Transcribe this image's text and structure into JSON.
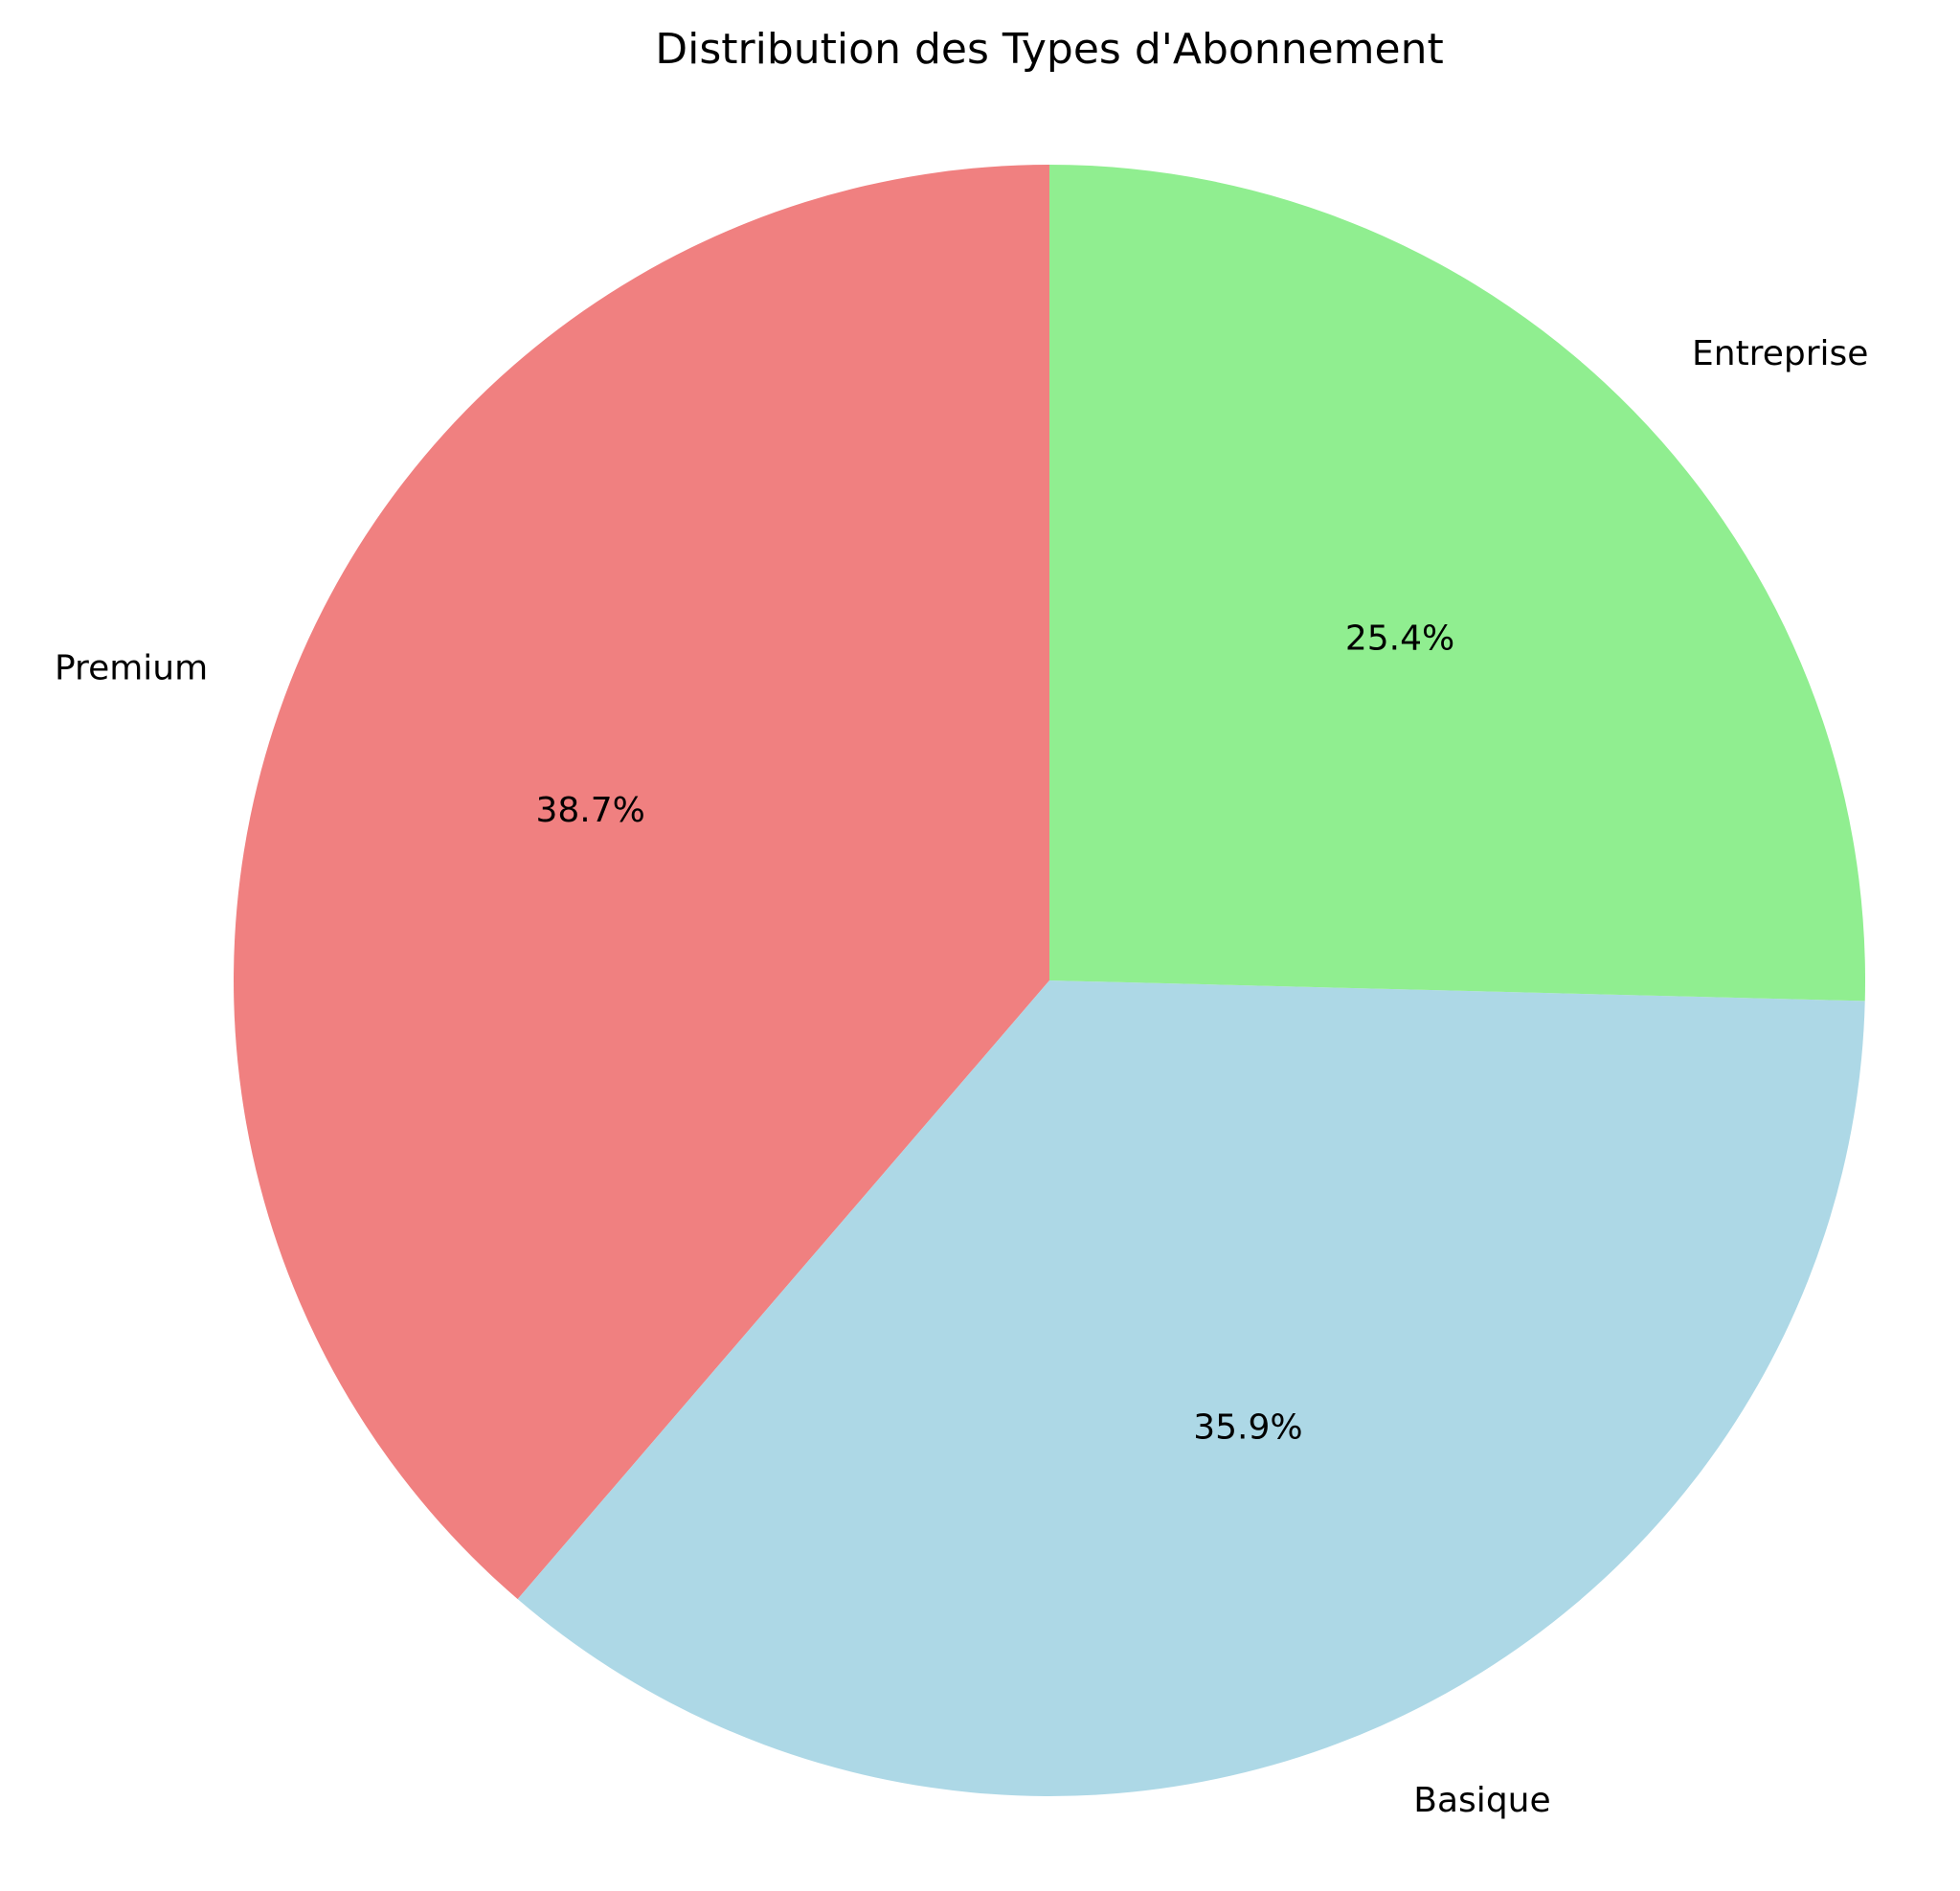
{
  "chart_data": {
    "type": "pie",
    "title": "Distribution des Types d'Abonnement",
    "start_angle_deg": 90,
    "direction": "counterclockwise",
    "slices": [
      {
        "label": "Premium",
        "value": 38.7,
        "pct_label": "38.7%",
        "color": "#f08080"
      },
      {
        "label": "Basique",
        "value": 35.9,
        "pct_label": "35.9%",
        "color": "#add8e6"
      },
      {
        "label": "Entreprise",
        "value": 25.4,
        "pct_label": "25.4%",
        "color": "#90ee90"
      }
    ]
  }
}
